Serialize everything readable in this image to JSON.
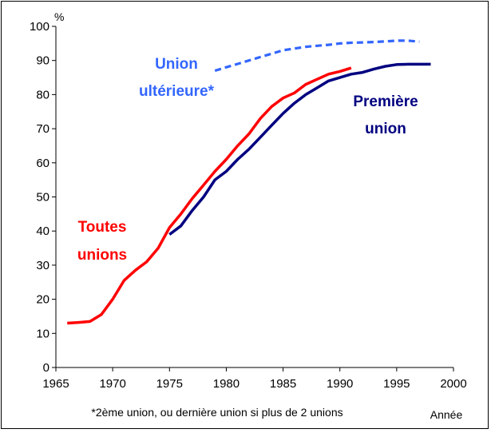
{
  "chart_data": {
    "type": "line",
    "ylabel": "%",
    "xlabel": "Année",
    "footnote": "*2ème union, ou dernière union si plus de 2 unions",
    "xlim": [
      1965,
      2000
    ],
    "ylim": [
      0,
      100
    ],
    "x_ticks": [
      1965,
      1970,
      1975,
      1980,
      1985,
      1990,
      1995,
      2000
    ],
    "y_ticks": [
      0,
      10,
      20,
      30,
      40,
      50,
      60,
      70,
      80,
      90,
      100
    ],
    "grid": false,
    "series": [
      {
        "name": "Toutes unions",
        "label_lines": [
          "Toutes",
          "unions"
        ],
        "color": "#ff0000",
        "style": "solid",
        "x": [
          1966,
          1967,
          1968,
          1969,
          1970,
          1971,
          1972,
          1973,
          1974,
          1975,
          1976,
          1977,
          1978,
          1979,
          1980,
          1981,
          1982,
          1983,
          1984,
          1985,
          1986,
          1987,
          1988,
          1989,
          1990,
          1991
        ],
        "y": [
          13,
          13.2,
          13.5,
          15.5,
          20,
          25.5,
          28.5,
          31,
          35,
          41,
          45,
          49.5,
          53.5,
          57.5,
          61,
          65,
          68.5,
          73,
          76.5,
          79,
          80.5,
          83,
          84.5,
          86,
          86.8,
          87.8
        ]
      },
      {
        "name": "Première union",
        "label_lines": [
          "Première",
          "union"
        ],
        "color": "#000080",
        "style": "solid",
        "x": [
          1975,
          1976,
          1977,
          1978,
          1979,
          1980,
          1981,
          1982,
          1983,
          1984,
          1985,
          1986,
          1987,
          1988,
          1989,
          1990,
          1991,
          1992,
          1993,
          1994,
          1995,
          1996,
          1997,
          1998
        ],
        "y": [
          39,
          41.5,
          46,
          50,
          55,
          57.5,
          61,
          64,
          67.5,
          71,
          74.5,
          77.5,
          80,
          82,
          84,
          85,
          86,
          86.5,
          87.5,
          88.3,
          88.8,
          88.9,
          88.9,
          88.9
        ]
      },
      {
        "name": "Union ultérieure*",
        "label_lines": [
          "Union",
          "ultérieure*"
        ],
        "color": "#3366ff",
        "style": "dashed",
        "x": [
          1979,
          1980,
          1981,
          1982,
          1983,
          1984,
          1985,
          1986,
          1987,
          1988,
          1989,
          1990,
          1991,
          1992,
          1993,
          1994,
          1995,
          1996,
          1997
        ],
        "y": [
          87,
          88,
          89,
          90,
          91,
          92,
          93,
          93.5,
          94,
          94.3,
          94.6,
          95,
          95.2,
          95.3,
          95.4,
          95.6,
          95.8,
          95.8,
          95.5
        ]
      }
    ]
  }
}
